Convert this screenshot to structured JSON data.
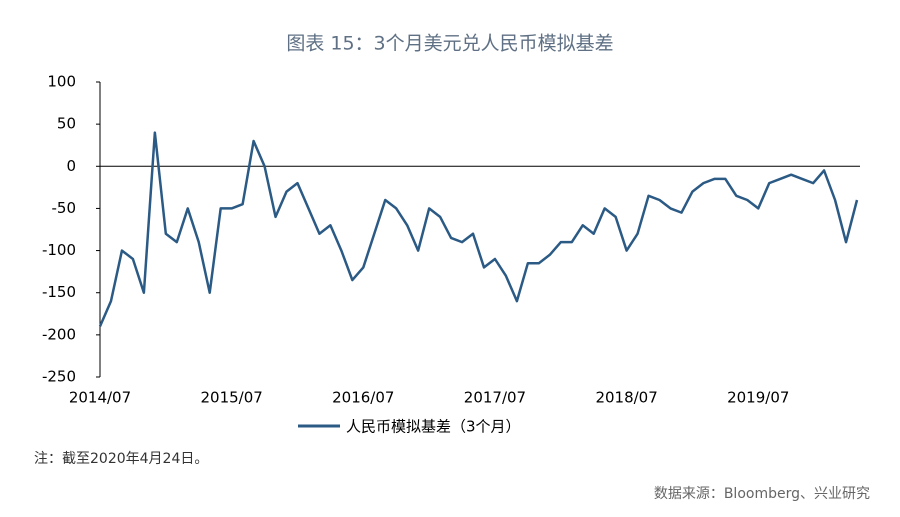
{
  "chart_data": {
    "type": "line",
    "title": "图表 15：3个月美元兑人民币模拟基差",
    "note": "注：截至2020年4月24日。",
    "source": "数据来源：Bloomberg、兴业研究",
    "x": [
      "2014/07",
      "2014/08",
      "2014/09",
      "2014/10",
      "2014/11",
      "2014/12",
      "2015/01",
      "2015/02",
      "2015/03",
      "2015/04",
      "2015/05",
      "2015/06",
      "2015/07",
      "2015/08",
      "2015/09",
      "2015/10",
      "2015/11",
      "2015/12",
      "2016/01",
      "2016/02",
      "2016/03",
      "2016/04",
      "2016/05",
      "2016/06",
      "2016/07",
      "2016/08",
      "2016/09",
      "2016/10",
      "2016/11",
      "2016/12",
      "2017/01",
      "2017/02",
      "2017/03",
      "2017/04",
      "2017/05",
      "2017/06",
      "2017/07",
      "2017/08",
      "2017/09",
      "2017/10",
      "2017/11",
      "2017/12",
      "2018/01",
      "2018/02",
      "2018/03",
      "2018/04",
      "2018/05",
      "2018/06",
      "2018/07",
      "2018/08",
      "2018/09",
      "2018/10",
      "2018/11",
      "2018/12",
      "2019/01",
      "2019/02",
      "2019/03",
      "2019/04",
      "2019/05",
      "2019/06",
      "2019/07",
      "2019/08",
      "2019/09",
      "2019/10",
      "2019/11",
      "2019/12",
      "2020/01",
      "2020/02",
      "2020/03",
      "2020/04"
    ],
    "series": [
      {
        "name": "人民币模拟基差（3个月）",
        "color": "#2b5a85",
        "values": [
          -190,
          -160,
          -100,
          -110,
          -150,
          40,
          -80,
          -90,
          -50,
          -90,
          -150,
          -50,
          -50,
          -45,
          30,
          0,
          -60,
          -30,
          -20,
          -50,
          -80,
          -70,
          -100,
          -135,
          -120,
          -80,
          -40,
          -50,
          -70,
          -100,
          -50,
          -60,
          -85,
          -90,
          -80,
          -120,
          -110,
          -130,
          -160,
          -115,
          -115,
          -105,
          -90,
          -90,
          -70,
          -80,
          -50,
          -60,
          -100,
          -80,
          -35,
          -40,
          -50,
          -55,
          -30,
          -20,
          -15,
          -15,
          -35,
          -40,
          -50,
          -20,
          -15,
          -10,
          -15,
          -20,
          -5,
          -40,
          -90,
          -40
        ]
      }
    ],
    "xticks": [
      "2014/07",
      "2015/07",
      "2016/07",
      "2017/07",
      "2018/07",
      "2019/07"
    ],
    "ylim": [
      -250,
      100
    ],
    "yticks": [
      -250,
      -200,
      -150,
      -100,
      -50,
      0,
      50,
      100
    ],
    "zero_line": true
  }
}
